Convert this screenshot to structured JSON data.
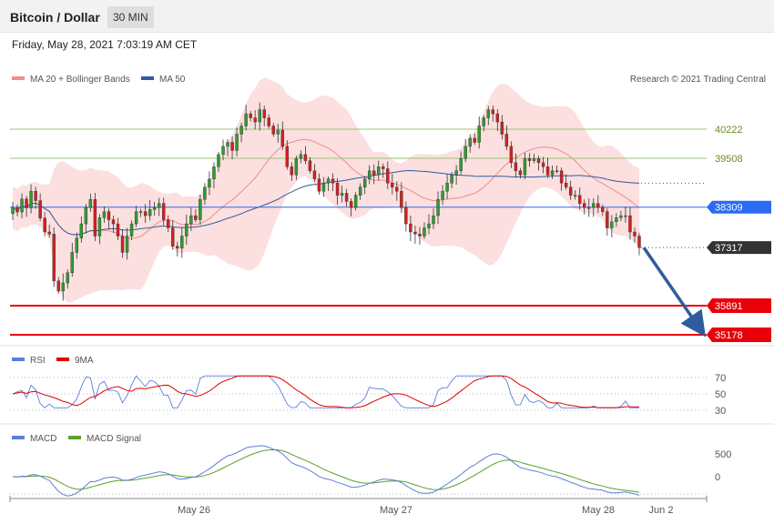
{
  "header": {
    "title": "Bitcoin / Dollar",
    "interval": "30 MIN",
    "datetime": "Friday, May 28, 2021 7:03:19 AM CET"
  },
  "legend": {
    "ma20_bb": "MA 20 + Bollinger Bands",
    "ma50": "MA 50",
    "copyright": "Research © 2021 Trading Central",
    "rsi": "RSI",
    "rsi_ma": "9MA",
    "macd": "MACD",
    "macd_signal": "MACD Signal"
  },
  "colors": {
    "candle_up": "#2e9c2e",
    "candle_down": "#d32020",
    "bollinger_fill": "#fcd9d9",
    "ma20": "#f08c8c",
    "ma50": "#2f5c9e",
    "resistance": "#9bc47a",
    "pivot": "#2a6bf2",
    "support": "#e8000b",
    "last_price": "#333333",
    "forecast_arrow": "#2f5c9e",
    "rsi": "#5b7fd9",
    "rsi_ma": "#e00000",
    "macd": "#5b7fd9",
    "macd_signal": "#5aa02c"
  },
  "levels": [
    {
      "label": "40222",
      "value": 40222,
      "kind": "resistance"
    },
    {
      "label": "39508",
      "value": 39508,
      "kind": "resistance"
    },
    {
      "label": "38309",
      "value": 38309,
      "kind": "pivot"
    },
    {
      "label": "37317",
      "value": 37317,
      "kind": "last"
    },
    {
      "label": "35891",
      "value": 35891,
      "kind": "support"
    },
    {
      "label": "35178",
      "value": 35178,
      "kind": "support"
    }
  ],
  "x_axis_labels": [
    "May 26",
    "May 27",
    "May 28",
    "Jun 2"
  ],
  "rsi_axis_labels": [
    "70",
    "50",
    "30"
  ],
  "macd_axis_labels": [
    "500",
    "0"
  ],
  "chart_data": {
    "type": "candlestick",
    "title": "Bitcoin / Dollar",
    "interval": "30 MIN",
    "price_range": [
      34900,
      41500
    ],
    "candle_count": 138,
    "candle_closes": [
      38290,
      38190,
      38510,
      38290,
      38700,
      38470,
      38040,
      37700,
      37650,
      36500,
      36250,
      36450,
      36700,
      37200,
      37550,
      37900,
      38300,
      38500,
      37600,
      38050,
      38200,
      38000,
      37900,
      37600,
      37200,
      37600,
      37900,
      38200,
      38200,
      38100,
      38250,
      38300,
      38400,
      38000,
      37800,
      37350,
      37300,
      37600,
      37900,
      38100,
      38000,
      38500,
      38800,
      39000,
      39300,
      39600,
      39800,
      39900,
      39700,
      40100,
      40300,
      40600,
      40500,
      40400,
      40700,
      40500,
      40300,
      40100,
      40200,
      39800,
      39300,
      39100,
      39500,
      39600,
      39450,
      39200,
      39000,
      38700,
      38900,
      39000,
      38900,
      38600,
      38650,
      38450,
      38300,
      38600,
      38800,
      39000,
      39200,
      39100,
      39300,
      39250,
      38900,
      38800,
      38700,
      38300,
      37900,
      37700,
      37650,
      37600,
      37800,
      37900,
      38100,
      38500,
      38700,
      38900,
      39100,
      39200,
      39500,
      39800,
      40000,
      39900,
      40300,
      40500,
      40700,
      40600,
      40400,
      40100,
      39800,
      39400,
      39200,
      39100,
      39500,
      39450,
      39500,
      39400,
      39300,
      39100,
      39200,
      39200,
      38900,
      38800,
      38600,
      38600,
      38400,
      38300,
      38300,
      38400,
      38300,
      38200,
      37800,
      37950,
      38050,
      38100,
      38100,
      37700,
      37600,
      37317
    ],
    "ma20_description": "MA 20 + Bollinger Bands",
    "ma50_description": "MA 50",
    "rsi_range": [
      20,
      80
    ],
    "rsi_reference_levels": [
      70,
      50,
      30
    ],
    "macd_reference_levels": [
      500,
      0
    ],
    "forecast": {
      "from": 37317,
      "to": 35178
    }
  }
}
